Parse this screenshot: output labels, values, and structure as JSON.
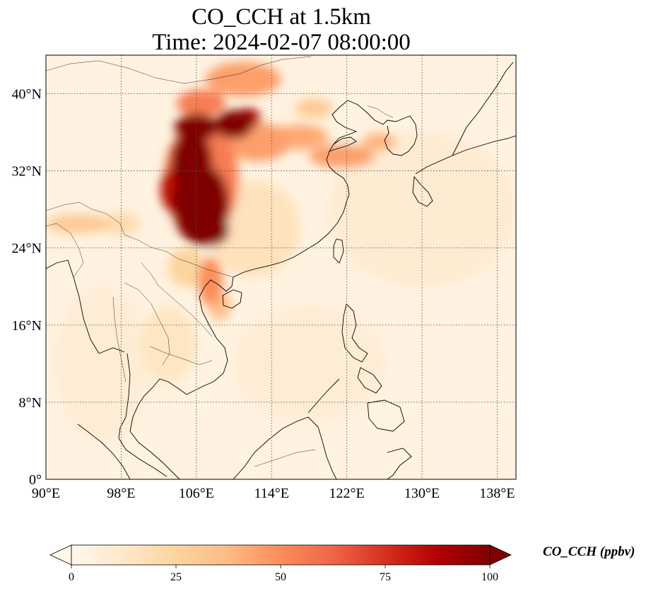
{
  "title": {
    "line1": "CO_CCH at 1.5km",
    "line2": "Time: 2024-02-07 08:00:00"
  },
  "map": {
    "projection": "PlateCarree",
    "lon_range": [
      90,
      140
    ],
    "lat_range": [
      0,
      44
    ],
    "lon_ticks": [
      {
        "value": 90,
        "label": "90°E"
      },
      {
        "value": 98,
        "label": "98°E"
      },
      {
        "value": 106,
        "label": "106°E"
      },
      {
        "value": 114,
        "label": "114°E"
      },
      {
        "value": 122,
        "label": "122°E"
      },
      {
        "value": 130,
        "label": "130°E"
      },
      {
        "value": 138,
        "label": "138°E"
      }
    ],
    "lat_ticks": [
      {
        "value": 0,
        "label": "0°"
      },
      {
        "value": 8,
        "label": "8°N"
      },
      {
        "value": 16,
        "label": "16°N"
      },
      {
        "value": 24,
        "label": "24°N"
      },
      {
        "value": 32,
        "label": "32°N"
      },
      {
        "value": 40,
        "label": "40°N"
      }
    ],
    "gridlines": "dotted",
    "background_value": 4,
    "field_blobs": [
      {
        "lon": 106.5,
        "lat": 28.5,
        "rx": 3.0,
        "ry": 4.2,
        "value": 110
      },
      {
        "lon": 105.5,
        "lat": 33.0,
        "rx": 2.2,
        "ry": 3.0,
        "value": 105
      },
      {
        "lon": 107.5,
        "lat": 25.8,
        "rx": 2.0,
        "ry": 1.6,
        "value": 100
      },
      {
        "lon": 106.0,
        "lat": 36.5,
        "rx": 2.3,
        "ry": 1.4,
        "value": 100
      },
      {
        "lon": 110.0,
        "lat": 36.8,
        "rx": 2.0,
        "ry": 1.5,
        "value": 100
      },
      {
        "lon": 111.5,
        "lat": 37.5,
        "rx": 1.3,
        "ry": 1.0,
        "value": 90
      },
      {
        "lon": 104.0,
        "lat": 30.0,
        "rx": 1.8,
        "ry": 2.5,
        "value": 85
      },
      {
        "lon": 106.5,
        "lat": 31.0,
        "rx": 4.0,
        "ry": 6.0,
        "value": 55
      },
      {
        "lon": 106.5,
        "lat": 39.0,
        "rx": 2.6,
        "ry": 1.4,
        "value": 55
      },
      {
        "lon": 111.0,
        "lat": 41.5,
        "rx": 4.0,
        "ry": 1.8,
        "value": 45
      },
      {
        "lon": 112.5,
        "lat": 35.0,
        "rx": 3.5,
        "ry": 2.0,
        "value": 45
      },
      {
        "lon": 117.0,
        "lat": 35.5,
        "rx": 3.0,
        "ry": 1.3,
        "value": 42
      },
      {
        "lon": 121.5,
        "lat": 33.5,
        "rx": 3.5,
        "ry": 1.2,
        "value": 45
      },
      {
        "lon": 125.5,
        "lat": 35.0,
        "rx": 1.8,
        "ry": 0.9,
        "value": 40
      },
      {
        "lon": 118.5,
        "lat": 38.5,
        "rx": 2.0,
        "ry": 1.0,
        "value": 30
      },
      {
        "lon": 107.5,
        "lat": 20.5,
        "rx": 1.3,
        "ry": 2.5,
        "value": 50
      },
      {
        "lon": 108.5,
        "lat": 18.0,
        "rx": 1.2,
        "ry": 1.5,
        "value": 35
      },
      {
        "lon": 105.0,
        "lat": 22.0,
        "rx": 2.0,
        "ry": 2.0,
        "value": 25
      },
      {
        "lon": 93.5,
        "lat": 26.5,
        "rx": 3.5,
        "ry": 1.0,
        "value": 30
      },
      {
        "lon": 98.0,
        "lat": 26.5,
        "rx": 2.0,
        "ry": 1.2,
        "value": 20
      },
      {
        "lon": 112.0,
        "lat": 26.0,
        "rx": 5.0,
        "ry": 5.0,
        "value": 16
      },
      {
        "lon": 103.0,
        "lat": 14.0,
        "rx": 3.0,
        "ry": 4.0,
        "value": 14
      },
      {
        "lon": 130.0,
        "lat": 28.0,
        "rx": 10.0,
        "ry": 8.0,
        "value": 9
      },
      {
        "lon": 118.0,
        "lat": 12.0,
        "rx": 8.0,
        "ry": 6.0,
        "value": 8
      },
      {
        "lon": 96.0,
        "lat": 12.0,
        "rx": 5.0,
        "ry": 8.0,
        "value": 8
      }
    ]
  },
  "colorbar": {
    "title": "CO_CCH (ppbv)",
    "cmap": "OrRd",
    "min": 0,
    "max": 100,
    "extend": "both",
    "ticks": [
      {
        "value": 0,
        "label": "0"
      },
      {
        "value": 25,
        "label": "25"
      },
      {
        "value": 50,
        "label": "50"
      },
      {
        "value": 75,
        "label": "75"
      },
      {
        "value": 100,
        "label": "100"
      }
    ],
    "colors": [
      "#fff7ec",
      "#fee8c8",
      "#fdd49e",
      "#fdbb84",
      "#fc8d59",
      "#ef6548",
      "#d7301f",
      "#b30000",
      "#7f0000"
    ]
  }
}
